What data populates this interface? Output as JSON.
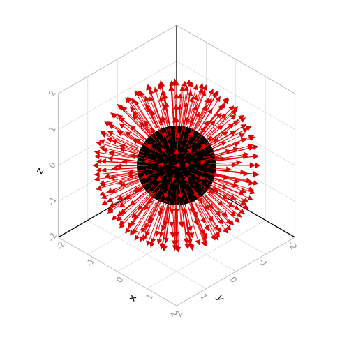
{
  "chart_data": {
    "type": "3d-quiver",
    "title": "",
    "xlabel": "x",
    "ylabel": "y",
    "zlabel": "z",
    "xlim": [
      -2,
      2
    ],
    "ylim": [
      -2,
      2
    ],
    "zlim": [
      -2,
      2
    ],
    "x_ticks": [
      "-2",
      "-1",
      "0",
      "1",
      "2"
    ],
    "y_ticks": [
      "-2",
      "-1",
      "0",
      "1",
      "2"
    ],
    "z_ticks": [
      "-2",
      "-1",
      "0",
      "1",
      "2"
    ],
    "grid": true,
    "inner_sphere_radius": 1,
    "arrow_tip_radius": 2,
    "arrow_color": "#e60000",
    "sphere_color": "#000000",
    "grid_color": "#d9d9d9",
    "tick_color": "#9a9a9a",
    "label_color": "#000000"
  }
}
